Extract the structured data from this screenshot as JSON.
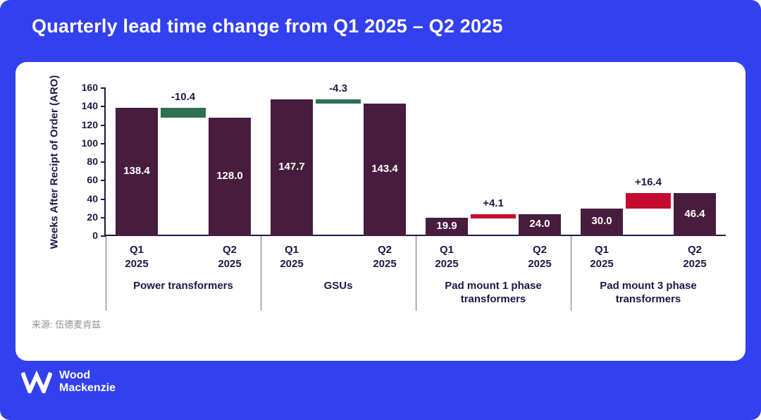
{
  "chart_data": {
    "type": "bar",
    "title": "Quarterly lead time change from Q1 2025 – Q2 2025",
    "ylabel": "Weeks After Recipt of Order (ARO)",
    "ylim": [
      0,
      160
    ],
    "yticks": [
      0,
      20,
      40,
      60,
      80,
      100,
      120,
      140,
      160
    ],
    "x_labels": [
      "Q1 2025",
      "Q2 2025"
    ],
    "groups": [
      {
        "label": "Power transformers",
        "values": [
          138.4,
          128.0
        ],
        "value_labels": [
          "138.4",
          "128.0"
        ],
        "change": -10.4,
        "change_label": "-10.4"
      },
      {
        "label": "GSUs",
        "values": [
          147.7,
          143.4
        ],
        "value_labels": [
          "147.7",
          "143.4"
        ],
        "change": -4.3,
        "change_label": "-4.3"
      },
      {
        "label": "Pad mount 1 phase transformers",
        "values": [
          19.9,
          24.0
        ],
        "value_labels": [
          "19.9",
          "24.0"
        ],
        "change": 4.1,
        "change_label": "+4.1"
      },
      {
        "label": "Pad mount 3 phase transformers",
        "values": [
          30.0,
          46.4
        ],
        "value_labels": [
          "30.0",
          "46.4"
        ],
        "change": 16.4,
        "change_label": "+16.4"
      }
    ],
    "colors": {
      "background": "#3340f0",
      "bar": "#481c3e",
      "decrease": "#2f7051",
      "increase": "#c30b30",
      "axis": "#1f1747"
    },
    "grid": false,
    "legend": false
  },
  "source": {
    "text": "来源: 伍德麦肯兹"
  },
  "logo": {
    "line1": "Wood",
    "line2": "Mackenzie"
  }
}
